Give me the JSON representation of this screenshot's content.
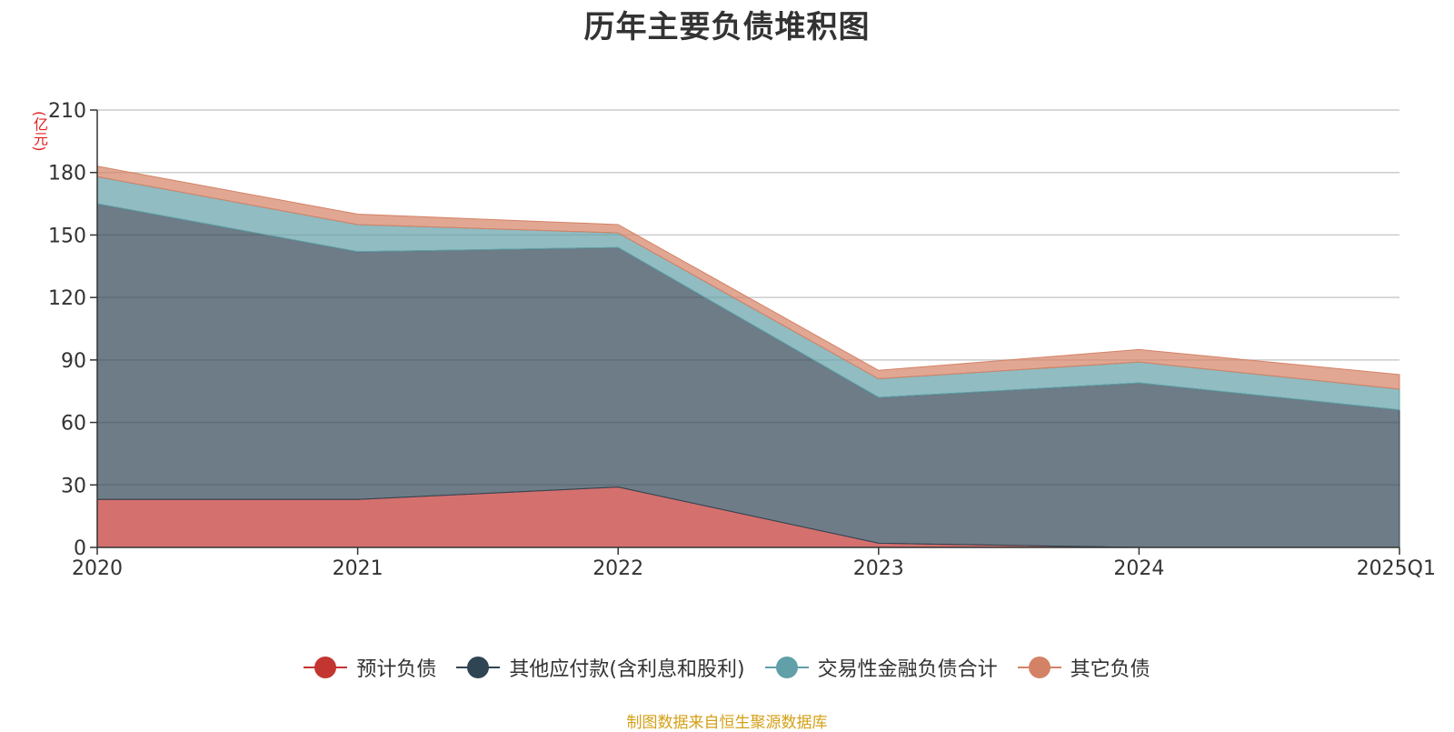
{
  "chart_data": {
    "type": "area",
    "stacked": true,
    "title": "历年主要负债堆积图",
    "ylabel": "(亿元)",
    "categories": [
      "2020",
      "2021",
      "2022",
      "2023",
      "2024",
      "2025Q1"
    ],
    "ylim": [
      0,
      210
    ],
    "yticks": [
      0,
      30,
      60,
      90,
      120,
      150,
      180,
      210
    ],
    "grid": true,
    "legend_position": "bottom",
    "series": [
      {
        "name": "预计负债",
        "color": "#c23531",
        "values": [
          23,
          23,
          29,
          2,
          0,
          0
        ]
      },
      {
        "name": "其他应付款(含利息和股利)",
        "color": "#2f4554",
        "values": [
          142,
          119,
          115,
          70,
          79,
          66
        ]
      },
      {
        "name": "交易性金融负债合计",
        "color": "#61a0a8",
        "values": [
          13,
          13,
          7,
          9,
          10,
          10
        ]
      },
      {
        "name": "其它负债",
        "color": "#d48265",
        "values": [
          5,
          5,
          4,
          4,
          6,
          7
        ]
      }
    ]
  },
  "source_note": "制图数据来自恒生聚源数据库"
}
